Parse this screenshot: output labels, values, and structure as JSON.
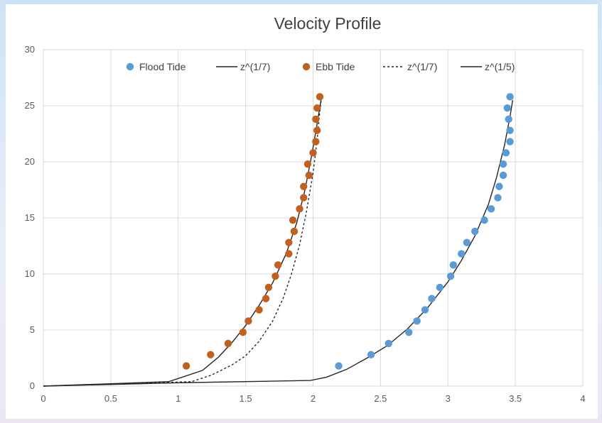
{
  "chart_data": {
    "type": "scatter",
    "title": "Velocity Profile",
    "xlabel": "",
    "ylabel": "",
    "xlim": [
      0,
      4
    ],
    "ylim": [
      0,
      30
    ],
    "xticks": [
      0,
      0.5,
      1,
      1.5,
      2,
      2.5,
      3,
      3.5,
      4
    ],
    "yticks": [
      0,
      5,
      10,
      15,
      20,
      25,
      30
    ],
    "grid": true,
    "legend_position": "top",
    "series": [
      {
        "name": "Flood Tide",
        "kind": "scatter",
        "color": "#5b9bd5",
        "points": [
          [
            2.19,
            1.8
          ],
          [
            2.43,
            2.8
          ],
          [
            2.56,
            3.8
          ],
          [
            2.71,
            4.8
          ],
          [
            2.77,
            5.8
          ],
          [
            2.83,
            6.8
          ],
          [
            2.88,
            7.8
          ],
          [
            2.94,
            8.8
          ],
          [
            3.02,
            9.8
          ],
          [
            3.04,
            10.8
          ],
          [
            3.1,
            11.8
          ],
          [
            3.14,
            12.8
          ],
          [
            3.2,
            13.8
          ],
          [
            3.27,
            14.8
          ],
          [
            3.32,
            15.8
          ],
          [
            3.37,
            16.8
          ],
          [
            3.38,
            17.8
          ],
          [
            3.41,
            18.8
          ],
          [
            3.41,
            19.8
          ],
          [
            3.43,
            20.8
          ],
          [
            3.46,
            21.8
          ],
          [
            3.46,
            22.8
          ],
          [
            3.45,
            23.8
          ],
          [
            3.44,
            24.8
          ],
          [
            3.46,
            25.8
          ]
        ]
      },
      {
        "name": "z^(1/7)",
        "kind": "line",
        "dash": "solid",
        "color": "#262626",
        "points": [
          [
            0,
            0
          ],
          [
            1,
            0.3
          ],
          [
            1.98,
            0.5
          ],
          [
            2.1,
            0.8
          ],
          [
            2.25,
            1.5
          ],
          [
            2.4,
            2.5
          ],
          [
            2.55,
            3.6
          ],
          [
            2.7,
            5.1
          ],
          [
            2.85,
            7
          ],
          [
            3,
            9.3
          ],
          [
            3.1,
            11.2
          ],
          [
            3.2,
            13.4
          ],
          [
            3.3,
            16.2
          ],
          [
            3.36,
            18.6
          ],
          [
            3.42,
            21.5
          ],
          [
            3.46,
            24
          ],
          [
            3.48,
            25.5
          ]
        ]
      },
      {
        "name": "Ebb Tide",
        "kind": "scatter",
        "color": "#c0611f",
        "points": [
          [
            1.06,
            1.8
          ],
          [
            1.24,
            2.8
          ],
          [
            1.37,
            3.8
          ],
          [
            1.48,
            4.8
          ],
          [
            1.52,
            5.8
          ],
          [
            1.6,
            6.8
          ],
          [
            1.65,
            7.8
          ],
          [
            1.67,
            8.8
          ],
          [
            1.72,
            9.8
          ],
          [
            1.74,
            10.8
          ],
          [
            1.82,
            11.8
          ],
          [
            1.82,
            12.8
          ],
          [
            1.86,
            13.8
          ],
          [
            1.85,
            14.8
          ],
          [
            1.9,
            15.8
          ],
          [
            1.93,
            16.8
          ],
          [
            1.93,
            17.8
          ],
          [
            1.97,
            18.8
          ],
          [
            1.96,
            19.8
          ],
          [
            2,
            20.8
          ],
          [
            2.02,
            21.8
          ],
          [
            2.03,
            22.8
          ],
          [
            2.02,
            23.8
          ],
          [
            2.03,
            24.8
          ],
          [
            2.05,
            25.8
          ]
        ]
      },
      {
        "name": "z^(1/7)",
        "kind": "line",
        "dash": "dashed",
        "color": "#262626",
        "points": [
          [
            0,
            0
          ],
          [
            1.1,
            0.4
          ],
          [
            1.25,
            1
          ],
          [
            1.4,
            1.9
          ],
          [
            1.5,
            2.7
          ],
          [
            1.6,
            4
          ],
          [
            1.7,
            5.8
          ],
          [
            1.78,
            7.9
          ],
          [
            1.84,
            10
          ],
          [
            1.9,
            12.6
          ],
          [
            1.95,
            15.5
          ],
          [
            2,
            19
          ],
          [
            2.03,
            22
          ],
          [
            2.05,
            24.5
          ],
          [
            2.06,
            25.5
          ]
        ]
      },
      {
        "name": "z^(1/5)",
        "kind": "line",
        "dash": "solid",
        "color": "#262626",
        "points": [
          [
            0,
            0
          ],
          [
            0.93,
            0.4
          ],
          [
            1.18,
            1.4
          ],
          [
            1.3,
            2.6
          ],
          [
            1.4,
            3.9
          ],
          [
            1.5,
            5.4
          ],
          [
            1.6,
            7.2
          ],
          [
            1.7,
            9.2
          ],
          [
            1.8,
            11.8
          ],
          [
            1.88,
            14.6
          ],
          [
            1.94,
            17.5
          ],
          [
            1.99,
            20.6
          ],
          [
            2.03,
            23.4
          ],
          [
            2.06,
            25.6
          ]
        ]
      }
    ]
  }
}
